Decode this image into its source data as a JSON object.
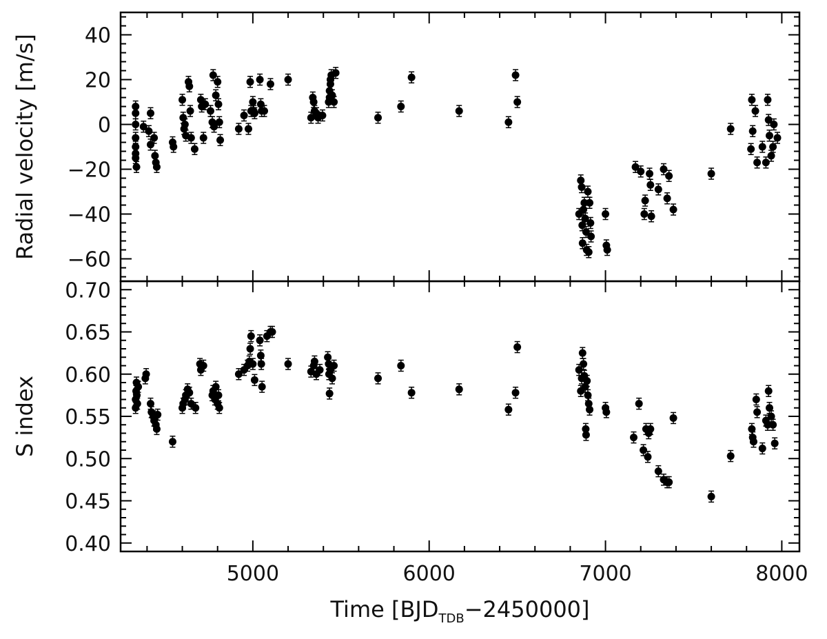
{
  "chart_data": [
    {
      "type": "scatter",
      "panel": "top",
      "title": "",
      "xlabel": "",
      "ylabel": "Radial velocity [m/s]",
      "xlim": [
        4250,
        8100
      ],
      "ylim": [
        -70,
        50
      ],
      "xticks": [
        5000,
        6000,
        7000,
        8000
      ],
      "yticks": [
        -60,
        -40,
        -20,
        0,
        20,
        40
      ],
      "ytick_labels": [
        "−60",
        "−40",
        "−20",
        "0",
        "20",
        "40"
      ],
      "grid": false,
      "error_bars": true,
      "marker": "filled-circle",
      "color": "#000000",
      "points": [
        [
          4335,
          8
        ],
        [
          4335,
          5
        ],
        [
          4335,
          0
        ],
        [
          4335,
          -6
        ],
        [
          4335,
          -10
        ],
        [
          4335,
          -13
        ],
        [
          4335,
          -15
        ],
        [
          4340,
          -19
        ],
        [
          4380,
          -1
        ],
        [
          4410,
          -3
        ],
        [
          4420,
          5
        ],
        [
          4420,
          -9
        ],
        [
          4440,
          -6
        ],
        [
          4445,
          -14
        ],
        [
          4450,
          -17
        ],
        [
          4455,
          -19
        ],
        [
          4545,
          -8
        ],
        [
          4550,
          -10
        ],
        [
          4600,
          11
        ],
        [
          4605,
          3
        ],
        [
          4610,
          -2
        ],
        [
          4615,
          0
        ],
        [
          4620,
          -5
        ],
        [
          4635,
          19
        ],
        [
          4640,
          17
        ],
        [
          4645,
          6
        ],
        [
          4650,
          -6
        ],
        [
          4670,
          -11
        ],
        [
          4705,
          11
        ],
        [
          4710,
          8
        ],
        [
          4720,
          -6
        ],
        [
          4730,
          9
        ],
        [
          4760,
          6
        ],
        [
          4770,
          1
        ],
        [
          4775,
          22
        ],
        [
          4780,
          -1
        ],
        [
          4790,
          13
        ],
        [
          4800,
          19
        ],
        [
          4805,
          9
        ],
        [
          4810,
          1
        ],
        [
          4815,
          -7
        ],
        [
          4920,
          -2
        ],
        [
          4950,
          4
        ],
        [
          4975,
          -2
        ],
        [
          4985,
          19
        ],
        [
          4990,
          6
        ],
        [
          5000,
          10
        ],
        [
          5005,
          6
        ],
        [
          5010,
          5
        ],
        [
          5040,
          20
        ],
        [
          5045,
          9
        ],
        [
          5050,
          6
        ],
        [
          5065,
          6
        ],
        [
          5100,
          18
        ],
        [
          5200,
          20
        ],
        [
          5330,
          3
        ],
        [
          5340,
          12
        ],
        [
          5345,
          10
        ],
        [
          5350,
          6
        ],
        [
          5360,
          5
        ],
        [
          5370,
          3
        ],
        [
          5395,
          4
        ],
        [
          5430,
          10
        ],
        [
          5435,
          12
        ],
        [
          5435,
          15
        ],
        [
          5440,
          18
        ],
        [
          5440,
          20
        ],
        [
          5445,
          22
        ],
        [
          5450,
          13
        ],
        [
          5460,
          10
        ],
        [
          5470,
          23
        ],
        [
          5710,
          3
        ],
        [
          5840,
          8
        ],
        [
          5900,
          21
        ],
        [
          6170,
          6
        ],
        [
          6450,
          1
        ],
        [
          6490,
          22
        ],
        [
          6500,
          10
        ],
        [
          6850,
          -40
        ],
        [
          6860,
          -25
        ],
        [
          6865,
          -28
        ],
        [
          6868,
          -45
        ],
        [
          6870,
          -53
        ],
        [
          6875,
          -38
        ],
        [
          6880,
          -35
        ],
        [
          6885,
          -42
        ],
        [
          6890,
          -48
        ],
        [
          6893,
          -56
        ],
        [
          6900,
          -30
        ],
        [
          6905,
          -57
        ],
        [
          6910,
          -35
        ],
        [
          6915,
          -44
        ],
        [
          6918,
          -50
        ],
        [
          7000,
          -40
        ],
        [
          7005,
          -54
        ],
        [
          7010,
          -56
        ],
        [
          7170,
          -19
        ],
        [
          7200,
          -21
        ],
        [
          7220,
          -40
        ],
        [
          7225,
          -34
        ],
        [
          7250,
          -22
        ],
        [
          7255,
          -27
        ],
        [
          7260,
          -41
        ],
        [
          7300,
          -29
        ],
        [
          7330,
          -20
        ],
        [
          7350,
          -33
        ],
        [
          7360,
          -23
        ],
        [
          7385,
          -38
        ],
        [
          7600,
          -22
        ],
        [
          7710,
          -2
        ],
        [
          7825,
          -11
        ],
        [
          7830,
          11
        ],
        [
          7835,
          -3
        ],
        [
          7850,
          6
        ],
        [
          7860,
          -17
        ],
        [
          7890,
          -10
        ],
        [
          7910,
          -17
        ],
        [
          7920,
          11
        ],
        [
          7925,
          2
        ],
        [
          7930,
          -5
        ],
        [
          7940,
          -14
        ],
        [
          7950,
          -10
        ],
        [
          7955,
          0
        ],
        [
          7975,
          -6
        ]
      ]
    },
    {
      "type": "scatter",
      "panel": "bottom",
      "title": "",
      "xlabel": "Time [BJD_TDB−2450000]",
      "xlabel_parts": {
        "before": "Time [BJD",
        "subscript": "TDB",
        "after": "−2450000]"
      },
      "ylabel": "S index",
      "xlim": [
        4250,
        8100
      ],
      "ylim": [
        0.39,
        0.71
      ],
      "xticks": [
        5000,
        6000,
        7000,
        8000
      ],
      "xtick_labels": [
        "5000",
        "6000",
        "7000",
        "8000"
      ],
      "yticks": [
        0.4,
        0.45,
        0.5,
        0.55,
        0.6,
        0.65,
        0.7
      ],
      "ytick_labels": [
        "0.40",
        "0.45",
        "0.50",
        "0.55",
        "0.60",
        "0.65",
        "0.70"
      ],
      "grid": false,
      "error_bars": true,
      "marker": "filled-circle",
      "color": "#000000",
      "points": [
        [
          4335,
          0.56
        ],
        [
          4335,
          0.57
        ],
        [
          4338,
          0.58
        ],
        [
          4340,
          0.59
        ],
        [
          4342,
          0.575
        ],
        [
          4345,
          0.565
        ],
        [
          4350,
          0.585
        ],
        [
          4390,
          0.595
        ],
        [
          4395,
          0.6
        ],
        [
          4420,
          0.565
        ],
        [
          4425,
          0.555
        ],
        [
          4435,
          0.55
        ],
        [
          4440,
          0.545
        ],
        [
          4450,
          0.54
        ],
        [
          4455,
          0.535
        ],
        [
          4460,
          0.552
        ],
        [
          4545,
          0.52
        ],
        [
          4600,
          0.56
        ],
        [
          4605,
          0.565
        ],
        [
          4615,
          0.57
        ],
        [
          4620,
          0.575
        ],
        [
          4630,
          0.582
        ],
        [
          4640,
          0.578
        ],
        [
          4650,
          0.565
        ],
        [
          4675,
          0.56
        ],
        [
          4700,
          0.612
        ],
        [
          4705,
          0.605
        ],
        [
          4720,
          0.61
        ],
        [
          4770,
          0.575
        ],
        [
          4775,
          0.58
        ],
        [
          4785,
          0.57
        ],
        [
          4790,
          0.585
        ],
        [
          4800,
          0.565
        ],
        [
          4805,
          0.575
        ],
        [
          4810,
          0.56
        ],
        [
          4920,
          0.6
        ],
        [
          4950,
          0.605
        ],
        [
          4970,
          0.61
        ],
        [
          4980,
          0.615
        ],
        [
          4985,
          0.63
        ],
        [
          4990,
          0.645
        ],
        [
          5000,
          0.612
        ],
        [
          5010,
          0.593
        ],
        [
          5040,
          0.64
        ],
        [
          5045,
          0.622
        ],
        [
          5048,
          0.612
        ],
        [
          5052,
          0.585
        ],
        [
          5080,
          0.645
        ],
        [
          5100,
          0.65
        ],
        [
          5110,
          0.65
        ],
        [
          5200,
          0.612
        ],
        [
          5330,
          0.603
        ],
        [
          5345,
          0.61
        ],
        [
          5350,
          0.615
        ],
        [
          5360,
          0.6
        ],
        [
          5380,
          0.605
        ],
        [
          5425,
          0.62
        ],
        [
          5430,
          0.612
        ],
        [
          5432,
          0.6
        ],
        [
          5435,
          0.577
        ],
        [
          5440,
          0.605
        ],
        [
          5450,
          0.595
        ],
        [
          5460,
          0.61
        ],
        [
          5710,
          0.595
        ],
        [
          5840,
          0.61
        ],
        [
          5900,
          0.578
        ],
        [
          6170,
          0.582
        ],
        [
          6450,
          0.558
        ],
        [
          6490,
          0.578
        ],
        [
          6500,
          0.632
        ],
        [
          6850,
          0.605
        ],
        [
          6860,
          0.58
        ],
        [
          6865,
          0.595
        ],
        [
          6870,
          0.625
        ],
        [
          6875,
          0.612
        ],
        [
          6880,
          0.598
        ],
        [
          6885,
          0.585
        ],
        [
          6888,
          0.535
        ],
        [
          6890,
          0.528
        ],
        [
          6895,
          0.592
        ],
        [
          6900,
          0.575
        ],
        [
          6905,
          0.565
        ],
        [
          6910,
          0.558
        ],
        [
          7000,
          0.56
        ],
        [
          7005,
          0.555
        ],
        [
          7160,
          0.525
        ],
        [
          7190,
          0.565
        ],
        [
          7215,
          0.51
        ],
        [
          7230,
          0.535
        ],
        [
          7240,
          0.502
        ],
        [
          7245,
          0.53
        ],
        [
          7255,
          0.535
        ],
        [
          7300,
          0.485
        ],
        [
          7330,
          0.475
        ],
        [
          7350,
          0.472
        ],
        [
          7360,
          0.472
        ],
        [
          7385,
          0.548
        ],
        [
          7600,
          0.455
        ],
        [
          7710,
          0.503
        ],
        [
          7830,
          0.535
        ],
        [
          7835,
          0.525
        ],
        [
          7840,
          0.52
        ],
        [
          7855,
          0.57
        ],
        [
          7860,
          0.555
        ],
        [
          7890,
          0.512
        ],
        [
          7910,
          0.545
        ],
        [
          7920,
          0.54
        ],
        [
          7925,
          0.58
        ],
        [
          7930,
          0.56
        ],
        [
          7940,
          0.55
        ],
        [
          7950,
          0.54
        ],
        [
          7960,
          0.518
        ]
      ]
    }
  ]
}
